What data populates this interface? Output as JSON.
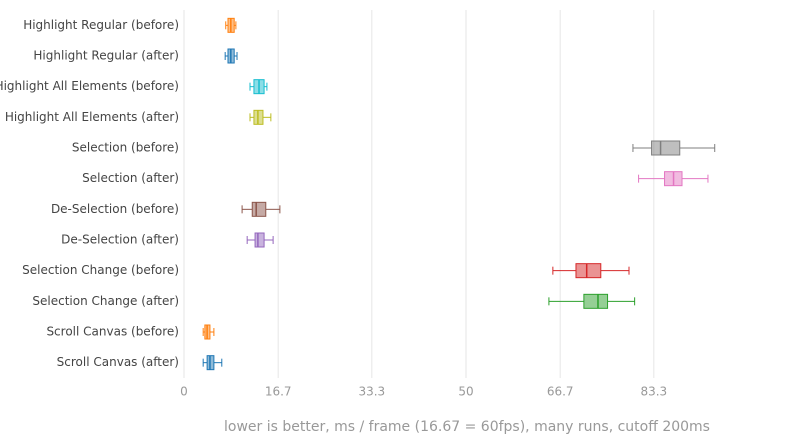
{
  "chart_data": {
    "type": "box",
    "x_label": "lower is better, ms / frame (16.67 = 60fps), many runs, cutoff 200ms",
    "xlim": [
      0,
      100
    ],
    "xticks": [
      0,
      16.7,
      33.3,
      50,
      66.7,
      83.3
    ],
    "grid": true,
    "series": [
      {
        "name": "Highlight Regular (before)",
        "color": "#ff7f0e",
        "min": 7.4,
        "q1": 7.8,
        "median": 8.3,
        "q3": 8.9,
        "max": 9.2
      },
      {
        "name": "Highlight Regular (after)",
        "color": "#1f77b4",
        "min": 7.3,
        "q1": 7.8,
        "median": 8.3,
        "q3": 8.9,
        "max": 9.4
      },
      {
        "name": "Highlight All Elements (before)",
        "color": "#17becf",
        "min": 11.7,
        "q1": 12.4,
        "median": 13.3,
        "q3": 14.2,
        "max": 14.7
      },
      {
        "name": "Highlight All Elements (after)",
        "color": "#bcbd22",
        "min": 11.7,
        "q1": 12.4,
        "median": 13.1,
        "q3": 14.0,
        "max": 15.4
      },
      {
        "name": "Selection (before)",
        "color": "#7f7f7f",
        "min": 79.6,
        "q1": 82.9,
        "median": 84.5,
        "q3": 87.9,
        "max": 94.1
      },
      {
        "name": "Selection (after)",
        "color": "#e377c2",
        "min": 80.6,
        "q1": 85.2,
        "median": 86.8,
        "q3": 88.3,
        "max": 92.9
      },
      {
        "name": "De-Selection (before)",
        "color": "#8c564b",
        "min": 10.3,
        "q1": 12.1,
        "median": 12.8,
        "q3": 14.5,
        "max": 17.0
      },
      {
        "name": "De-Selection (after)",
        "color": "#9467bd",
        "min": 11.2,
        "q1": 12.6,
        "median": 13.1,
        "q3": 14.2,
        "max": 15.8
      },
      {
        "name": "Selection Change (before)",
        "color": "#d62728",
        "min": 65.4,
        "q1": 69.5,
        "median": 71.4,
        "q3": 73.9,
        "max": 78.9
      },
      {
        "name": "Selection Change (after)",
        "color": "#2ca02c",
        "min": 64.7,
        "q1": 70.9,
        "median": 73.4,
        "q3": 75.1,
        "max": 79.9
      },
      {
        "name": "Scroll Canvas (before)",
        "color": "#ff7f0e",
        "min": 3.4,
        "q1": 3.7,
        "median": 4.1,
        "q3": 4.6,
        "max": 5.3
      },
      {
        "name": "Scroll Canvas (after)",
        "color": "#1f77b4",
        "min": 3.4,
        "q1": 4.1,
        "median": 4.6,
        "q3": 5.3,
        "max": 6.7
      }
    ]
  }
}
